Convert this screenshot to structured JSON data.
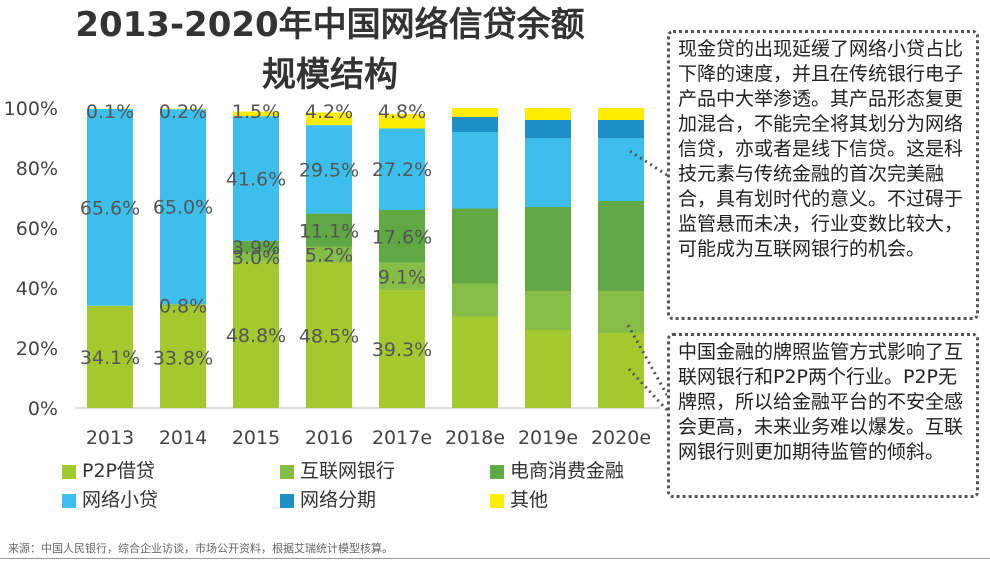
{
  "title_line1": "2013-2020年中国网络信贷余额",
  "title_line2": "规模结构",
  "chart_data": {
    "type": "bar",
    "stacked": true,
    "categories": [
      "2013",
      "2014",
      "2015",
      "2016",
      "2017e",
      "2018e",
      "2019e",
      "2020e"
    ],
    "ylim": [
      0,
      100
    ],
    "yticks": [
      "0%",
      "20%",
      "40%",
      "60%",
      "80%",
      "100%"
    ],
    "series": [
      {
        "name": "P2P借贷",
        "color": "#a4c92f",
        "values": [
          34.1,
          33.8,
          48.8,
          48.5,
          39.3,
          30.5,
          26.0,
          25.0
        ],
        "labels": [
          "34.1%",
          "33.8%",
          "48.8%",
          "48.5%",
          "39.3%",
          "",
          "",
          ""
        ]
      },
      {
        "name": "互联网银行",
        "color": "#86bd47",
        "values": [
          0,
          0.8,
          3.0,
          5.2,
          9.1,
          11.0,
          13.0,
          14.0
        ],
        "labels": [
          "",
          "0.8%",
          "3.0%",
          "5.2%",
          "9.1%",
          "",
          "",
          ""
        ]
      },
      {
        "name": "电商消费金融",
        "color": "#5fa844",
        "values": [
          0,
          0,
          3.9,
          11.1,
          17.6,
          25.0,
          28.0,
          30.0
        ],
        "labels": [
          "",
          "",
          "3.9%",
          "11.1%",
          "17.6%",
          "",
          "",
          ""
        ]
      },
      {
        "name": "网络小贷",
        "color": "#3dbfee",
        "values": [
          65.6,
          65.0,
          41.6,
          29.5,
          27.2,
          25.5,
          23.0,
          21.0
        ],
        "labels": [
          "65.6%",
          "65.0%",
          "41.6%",
          "29.5%",
          "27.2%",
          "",
          "",
          ""
        ]
      },
      {
        "name": "网络分期",
        "color": "#1e8ec6",
        "values": [
          0,
          0,
          0,
          0,
          0,
          5.0,
          6.0,
          6.0
        ],
        "labels": [
          "",
          "",
          "",
          "",
          "",
          "",
          "",
          ""
        ]
      },
      {
        "name": "其他",
        "color": "#ffed00",
        "values": [
          0.1,
          0.2,
          1.5,
          4.2,
          4.8,
          3.0,
          4.0,
          4.0
        ],
        "labels": [
          "0.1%",
          "0.2%",
          "1.5%",
          "4.2%",
          "4.8%",
          "",
          "",
          ""
        ]
      }
    ]
  },
  "callout_1": "现金贷的出现延缓了网络小贷占比下降的速度，并且在传统银行电子产品中大举渗透。其产品形态复更加混合，不能完全将其划分为网络信贷，亦或者是线下信贷。这是科技元素与传统金融的首次完美融合，具有划时代的意义。不过碍于监管悬而未决，行业变数比较大，可能成为互联网银行的机会。",
  "callout_2": "中国金融的牌照监管方式影响了互联网银行和P2P两个行业。P2P无牌照，所以给金融平台的不安全感会更高，未来业务难以爆发。互联网银行则更加期待监管的倾斜。",
  "source": "来源：中国人民银行，综合企业访谈，市场公开资料，根据艾瑞统计模型核算。"
}
